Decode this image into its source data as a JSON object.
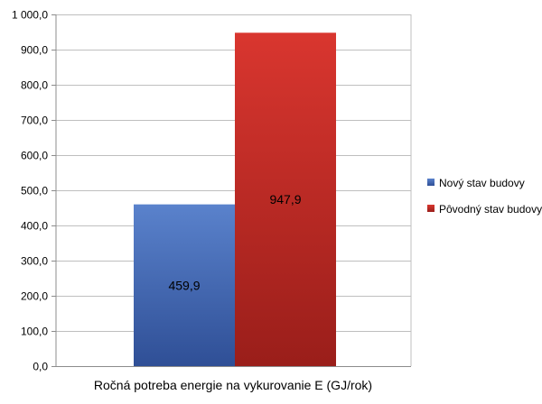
{
  "chart_data": {
    "type": "bar",
    "categories": [
      "Ročná potreba energie na vykurovanie E (GJ/rok)"
    ],
    "series": [
      {
        "name": "Nový stav budovy",
        "values": [
          459.9
        ],
        "value_label": "459,9",
        "color": "#4a6fbd"
      },
      {
        "name": "Pôvodný stav budovy",
        "values": [
          947.9
        ],
        "value_label": "947,9",
        "color": "#c8302c"
      }
    ],
    "ylim": [
      0,
      1000
    ],
    "y_ticks": [
      0,
      100,
      200,
      300,
      400,
      500,
      600,
      700,
      800,
      900,
      1000
    ],
    "y_tick_labels": [
      "0,0",
      "100,0",
      "200,0",
      "300,0",
      "400,0",
      "500,0",
      "600,0",
      "700,0",
      "800,0",
      "900,0",
      "1 000,0"
    ],
    "xlabel": "Ročná potreba energie na vykurovanie E (GJ/rok)",
    "grid": true,
    "legend_position": "right"
  }
}
